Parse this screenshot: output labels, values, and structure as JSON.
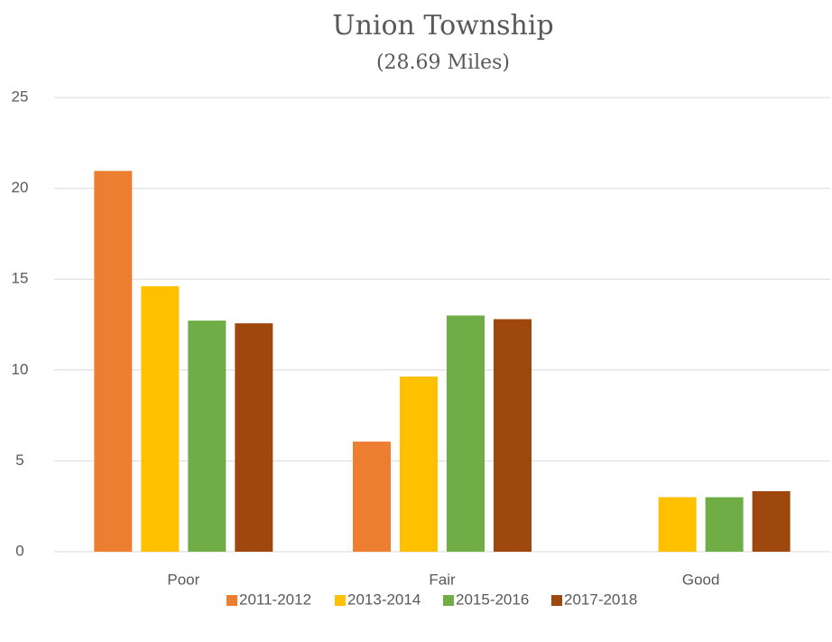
{
  "chart_data": {
    "type": "bar",
    "title": "Union Township",
    "subtitle": "(28.69 Miles)",
    "categories": [
      "Poor",
      "Fair",
      "Good"
    ],
    "series": [
      {
        "name": "2011-2012",
        "color": "#ed7d31",
        "values": [
          20.96,
          6.06,
          0
        ]
      },
      {
        "name": "2013-2014",
        "color": "#ffc000",
        "values": [
          14.61,
          9.64,
          3.0
        ]
      },
      {
        "name": "2015-2016",
        "color": "#70ad47",
        "values": [
          12.72,
          13.0,
          3.0
        ]
      },
      {
        "name": "2017-2018",
        "color": "#9e480e",
        "values": [
          12.57,
          12.8,
          3.33
        ]
      }
    ],
    "ylim": [
      0,
      25
    ],
    "yticks": [
      0,
      5,
      10,
      15,
      20,
      25
    ],
    "grid": true,
    "legend": "bottom"
  }
}
